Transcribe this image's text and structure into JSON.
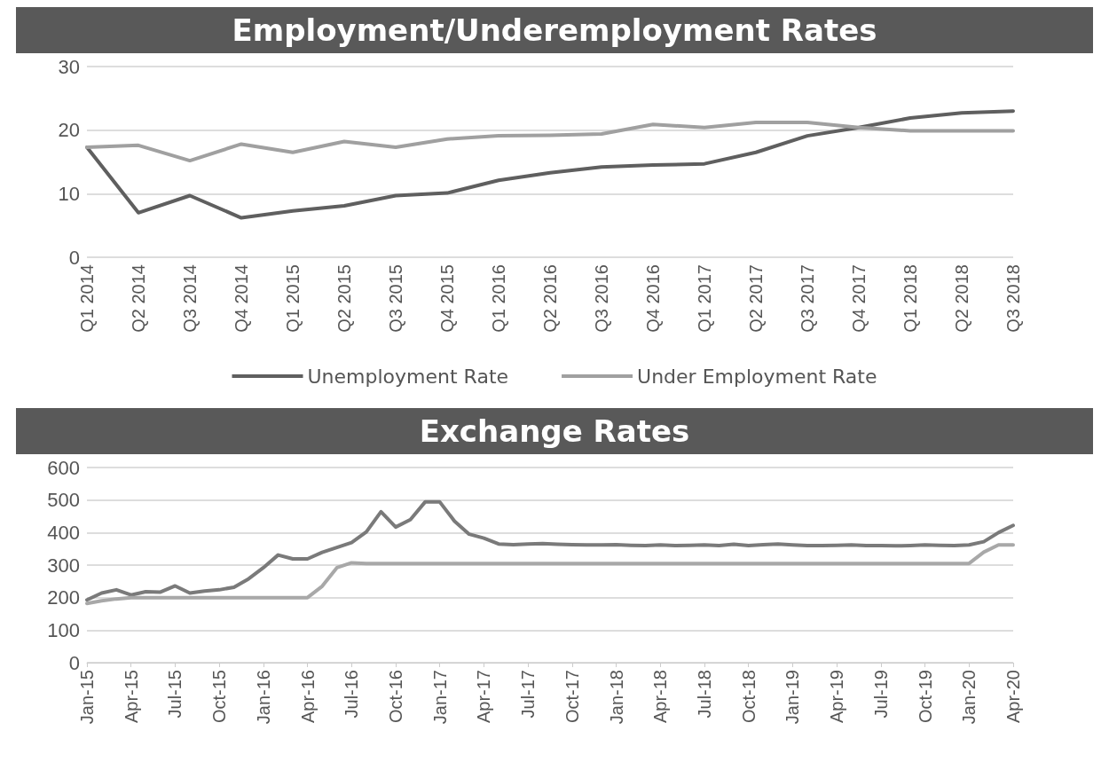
{
  "chart_data": [
    {
      "type": "line",
      "title": "Employment/Underemployment Rates",
      "categories": [
        "Q1 2014",
        "Q2 2014",
        "Q3 2014",
        "Q4 2014",
        "Q1 2015",
        "Q2 2015",
        "Q3 2015",
        "Q4 2015",
        "Q1 2016",
        "Q2 2016",
        "Q3 2016",
        "Q4 2016",
        "Q1 2017",
        "Q2 2017",
        "Q3 2017",
        "Q4 2017",
        "Q1 2018",
        "Q2 2018",
        "Q3 2018"
      ],
      "series": [
        {
          "name": "Unemployment Rate",
          "color": "#5f5f5f",
          "values": [
            17.3,
            7.0,
            9.7,
            6.2,
            7.3,
            8.1,
            9.7,
            10.1,
            12.1,
            13.3,
            14.2,
            14.5,
            14.7,
            16.5,
            19.1,
            20.4,
            21.9,
            22.7,
            23.0
          ]
        },
        {
          "name": "Under Employment Rate",
          "color": "#a0a0a0",
          "values": [
            17.3,
            17.6,
            15.2,
            17.8,
            16.5,
            18.2,
            17.3,
            18.6,
            19.1,
            19.2,
            19.4,
            20.9,
            20.4,
            21.2,
            21.2,
            20.4,
            19.9,
            19.9,
            19.9
          ]
        }
      ],
      "ylim": [
        0,
        30
      ],
      "yticks": [
        0,
        10,
        20,
        30
      ],
      "grid": "y",
      "legend": "bottom",
      "marker": "none"
    },
    {
      "type": "line",
      "title": "Exchange Rates",
      "categories": [
        "Jan-15",
        null,
        null,
        "Apr-15",
        null,
        null,
        "Jul-15",
        null,
        null,
        "Oct-15",
        null,
        null,
        "Jan-16",
        null,
        null,
        "Apr-16",
        null,
        null,
        "Jul-16",
        null,
        null,
        "Oct-16",
        null,
        null,
        "Jan-17",
        null,
        null,
        "Apr-17",
        null,
        null,
        "Jul-17",
        null,
        null,
        "Oct-17",
        null,
        null,
        "Jan-18",
        null,
        null,
        "Apr-18",
        null,
        null,
        "Jul-18",
        null,
        null,
        "Oct-18",
        null,
        null,
        "Jan-19",
        null,
        null,
        "Apr-19",
        null,
        null,
        "Jul-19",
        null,
        null,
        "Oct-19",
        null,
        null,
        "Jan-20",
        null,
        null,
        "Apr-20"
      ],
      "series": [
        {
          "color": "#7a7a7a",
          "values": [
            193,
            214,
            224,
            208,
            218,
            217,
            236,
            214,
            220,
            224,
            232,
            258,
            292,
            331,
            319,
            319,
            339,
            354,
            369,
            402,
            464,
            417,
            440,
            494,
            494,
            435,
            395,
            383,
            365,
            363,
            365,
            366,
            364,
            363,
            362,
            362,
            363,
            361,
            360,
            362,
            360,
            361,
            362,
            360,
            364,
            360,
            363,
            365,
            362,
            360,
            360,
            361,
            362,
            360,
            360,
            359,
            360,
            362,
            361,
            360,
            362,
            372,
            400,
            422
          ]
        },
        {
          "color": "#a8a8a8",
          "values": [
            182,
            190,
            196,
            200,
            200,
            200,
            200,
            200,
            200,
            200,
            200,
            200,
            200,
            200,
            200,
            200,
            235,
            292,
            307,
            305,
            305,
            305,
            305,
            305,
            305,
            305,
            305,
            305,
            305,
            305,
            305,
            305,
            305,
            305,
            305,
            305,
            305,
            305,
            305,
            305,
            305,
            305,
            305,
            305,
            305,
            305,
            305,
            305,
            305,
            305,
            305,
            305,
            305,
            305,
            305,
            305,
            305,
            305,
            305,
            305,
            305,
            340,
            362,
            362
          ]
        }
      ],
      "ylim": [
        0,
        600
      ],
      "yticks": [
        0,
        100,
        200,
        300,
        400,
        500,
        600
      ],
      "grid": "y",
      "legend": false,
      "marker": "none"
    }
  ]
}
